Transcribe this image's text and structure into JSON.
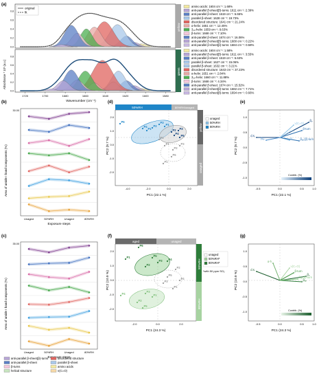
{
  "panel_labels": [
    "(a)",
    "(b)",
    "(c)",
    "(d)",
    "(e)",
    "(f)",
    "(g)"
  ],
  "panel_a": {
    "legend": [
      "original",
      "fit"
    ],
    "side_labels": [
      "yellow",
      "green"
    ],
    "xlabel": "Wavenumber (cm⁻¹)",
    "ylabel": "Absorbance * 10³ (a.u.)",
    "xticks": [
      "1720",
      "1700",
      "1680",
      "1660",
      "1640",
      "1620",
      "1600",
      "1580"
    ],
    "top_yticks": [
      "0.8",
      "0.6",
      "0.4",
      "0.2",
      "0.0"
    ],
    "bottom_yticks": [
      "0.8",
      "0.6",
      "0.4",
      "0.2",
      "0.0"
    ],
    "top_bands": [
      {
        "label": "amino acids: 1604 cm⁻¹: 1.68%",
        "color": "#f3e9a0"
      },
      {
        "label": "anti-parallel β-sheet(β)-turns: 1611 cm⁻¹: 2.39%",
        "color": "#b7a5d6"
      },
      {
        "label": "anti-parallel β-sheet: 1619 cm⁻¹: 6.65%",
        "color": "#5b7fc4"
      },
      {
        "label": "parallel β-sheet: 1628 cm⁻¹: 19.73%",
        "color": "#a9c8ea"
      },
      {
        "label": "disordered structure: 1641 cm⁻¹: 21.24%",
        "color": "#e0645f"
      },
      {
        "label": "α-helix: 1651 cm⁻¹: 12.45%",
        "color": "#e8a9a5"
      },
      {
        "label": "3₁₀-helix: 1659 cm⁻¹: 9.63%",
        "color": "#4caf50"
      },
      {
        "label": "β-turns: 1668 cm⁻¹: 7.10%",
        "color": "#f5c6dc"
      },
      {
        "label": "anti-parallel β-sheet: 1674 cm⁻¹: 16.06%",
        "color": "#5b7fc4"
      },
      {
        "label": "anti-parallel β-sheet(β)-turns: 1680 cm⁻¹: 0.22%",
        "color": "#b7a5d6"
      },
      {
        "label": "anti-parallel β-sheet(β)-turns: 1684 cm⁻¹: 0.58%",
        "color": "#c9b8e3"
      }
    ],
    "bottom_bands": [
      {
        "label": "amino acids: 1604 cm⁻¹: 1.58%",
        "color": "#f3e9a0"
      },
      {
        "label": "anti-parallel β-sheet(β)-turns: 1611 cm⁻¹: 3.55%",
        "color": "#b7a5d6"
      },
      {
        "label": "anti-parallel β-sheet: 1619 cm⁻¹: 6.63%",
        "color": "#5b7fc4"
      },
      {
        "label": "parallel β-sheet: 1627 cm⁻¹: 15.06%",
        "color": "#a9c8ea"
      },
      {
        "label": "parallel β-sheet: 1632 cm⁻¹: 3.21%",
        "color": "#a9c8ea"
      },
      {
        "label": "disordered structure: 1643 cm⁻¹: 37.23%",
        "color": "#e0645f"
      },
      {
        "label": "α-helix: 1651 cm⁻¹: 2.84%",
        "color": "#e8a9a5"
      },
      {
        "label": "3₁₀-helix: 1660 cm⁻¹: 11.88%",
        "color": "#4caf50"
      },
      {
        "label": "β-turns: 1668 cm⁻¹: 4.34%",
        "color": "#f5c6dc"
      },
      {
        "label": "anti-parallel β-sheet: 1674 cm⁻¹: 15.52%",
        "color": "#5b7fc4"
      },
      {
        "label": "anti-parallel β-sheet(β)-turns: 1682 cm⁻¹: 7.71%",
        "color": "#b7a5d6"
      },
      {
        "label": "anti-parallel β-sheet(β)-turns: 1694 cm⁻¹: 0.66%",
        "color": "#c9b8e3"
      }
    ]
  },
  "panel_b": {
    "xlabel": "Exposure steps",
    "ylabel": "Area of amide I band components (%)",
    "categories": [
      "Unaged",
      "50%RH",
      "Unaged",
      "80%RH"
    ],
    "rows": [
      {
        "color": "#7e3d8f",
        "values": [
          21.5,
          21.2,
          21.8,
          22.0
        ]
      },
      {
        "color": "#3f6fbf",
        "values": [
          22.0,
          21.6,
          23.0,
          22.4
        ]
      },
      {
        "color": "#d96aa6",
        "values": [
          16.5,
          17.0,
          16.0,
          17.2
        ]
      },
      {
        "color": "#46a84a",
        "values": [
          16.2,
          15.6,
          16.2,
          14.2
        ]
      },
      {
        "color": "#e0645f",
        "values": [
          24.0,
          24.5,
          23.9,
          24.4
        ]
      },
      {
        "color": "#3fa0e0",
        "values": [
          18.3,
          18.9,
          18.8,
          18.5
        ]
      },
      {
        "color": "#e9c84a",
        "values": [
          14.7,
          14.9,
          15.0,
          15.6
        ]
      },
      {
        "color": "#e8a23a",
        "values": [
          0.1,
          0.05,
          0.06,
          0.05
        ]
      }
    ],
    "top_tick": "30.00"
  },
  "panel_c": {
    "xlabel": "Exposure steps",
    "ylabel": "Area of amide I band components (%)",
    "categories": [
      "Unaged",
      "50%RH",
      "Unaged",
      "80%RH"
    ],
    "rows": [
      {
        "color": "#7e3d8f",
        "values": [
          23.0,
          22.0,
          23.4,
          24.0
        ]
      },
      {
        "color": "#3f6fbf",
        "values": [
          22.2,
          22.6,
          22.8,
          25.0
        ]
      },
      {
        "color": "#d96aa6",
        "values": [
          14.8,
          14.2,
          13.9,
          15.3
        ]
      },
      {
        "color": "#46a84a",
        "values": [
          15.9,
          15.2,
          15.7,
          14.9
        ]
      },
      {
        "color": "#e0645f",
        "values": [
          22.0,
          21.9,
          22.5,
          23.4
        ]
      },
      {
        "color": "#3fa0e0",
        "values": [
          18.5,
          18.7,
          18.8,
          20.4
        ]
      },
      {
        "color": "#e9c84a",
        "values": [
          14.6,
          13.8,
          14.2,
          13.2
        ]
      },
      {
        "color": "#e8a23a",
        "values": [
          0.05,
          0.03,
          0.06,
          0.04
        ]
      }
    ],
    "top_tick": "35.00"
  },
  "legend_bottom": [
    {
      "label": "anti-parallel β-sheet(β)-turns",
      "color": "#b7a5d6"
    },
    {
      "label": "disordered structure",
      "color": "#e0645f"
    },
    {
      "label": "anti-parallel β-sheet",
      "color": "#5b7fc4"
    },
    {
      "label": "parallel β-sheet",
      "color": "#a9c8ea"
    },
    {
      "label": "β-turns",
      "color": "#f5c6dc"
    },
    {
      "label": "amino acids",
      "color": "#f3e9a0"
    },
    {
      "label": "helical structure",
      "color": "#c8e6c0"
    },
    {
      "label": "ν(C=O)",
      "color": "#f7d9a8"
    }
  ],
  "panel_d": {
    "xlabel": "PC1 (22.1 %)",
    "ylabel": "PC2 (9.7 %)",
    "band_top": "50%RH",
    "band_top2": "80%RH/unaged",
    "band_right_top": "yellow",
    "band_right_bottom": "unaged",
    "legend": [
      "unaged",
      "50%RH",
      "80%RH"
    ],
    "xticks": [
      "-4.0",
      "-2.0",
      "0.0",
      "2.0"
    ],
    "yticks": [
      "2.0",
      "1.0",
      "0.0",
      "-1.0",
      "-2.0"
    ]
  },
  "panel_e": {
    "xlabel": "PC1 (22.1 %)",
    "ylabel": "PC2 (9.7 %)",
    "colorbar_label": "Contrib. (%)",
    "xticks": [
      "-0.5",
      "0.0",
      "0.5",
      "1.0"
    ],
    "yticks": [
      "1.0",
      "0.5",
      "0.0",
      "-0.5",
      "-1.0"
    ],
    "vectors": [
      "d.s.",
      "βₐₚ",
      "βₚ",
      "β-turn",
      "ν(C=O)",
      "h",
      "βₐₚ(β)-turn",
      "α-h"
    ]
  },
  "panel_f": {
    "xlabel": "PC1 (24.3 %)",
    "ylabel": "PC2 (10.9 %)",
    "band_top_left": "aged",
    "band_top_right": "unaged",
    "band_right_top": "50%RH",
    "band_right_bottom": "80%RH",
    "legend": [
      "unaged",
      "50%RH*",
      "80%RH*"
    ],
    "note": "*with 50 ppm SO₂",
    "xticks": [
      "-2.0",
      "0.0",
      "2.0"
    ],
    "yticks": [
      "2.0",
      "1.0",
      "0.0",
      "-1.0",
      "-2.0"
    ]
  },
  "panel_g": {
    "xlabel": "PC1 (24.3 %)",
    "ylabel": "PC2 (10.9 %)",
    "colorbar_label": "Contrib. (%)",
    "xticks": [
      "-0.5",
      "0.0",
      "0.5",
      "1.0"
    ],
    "yticks": [
      "1.0",
      "0.5",
      "0.0",
      "-0.5",
      "-1.0"
    ],
    "vectors": [
      "d.s.",
      "α-h",
      "ν(C=O)",
      "β-turn",
      "βₚ",
      "βₐₚ",
      "βₐₚ(β)-turn"
    ]
  },
  "chart_data": [
    {
      "type": "line",
      "title": "(b)",
      "xlabel": "Exposure steps",
      "ylabel": "Area of amide I band components (%)",
      "categories": [
        "Unaged",
        "50%RH",
        "Unaged",
        "80%RH"
      ]
    },
    {
      "type": "line",
      "title": "(c)",
      "xlabel": "Exposure steps",
      "ylabel": "Area of amide I band components (%)",
      "categories": [
        "Unaged",
        "50%RH",
        "Unaged",
        "80%RH"
      ]
    },
    {
      "type": "scatter",
      "title": "(d)",
      "xlabel": "PC1 (22.1 %)",
      "ylabel": "PC2 (9.7 %)"
    },
    {
      "type": "scatter",
      "title": "(f)",
      "xlabel": "PC1 (24.3 %)",
      "ylabel": "PC2 (10.9 %)"
    }
  ]
}
